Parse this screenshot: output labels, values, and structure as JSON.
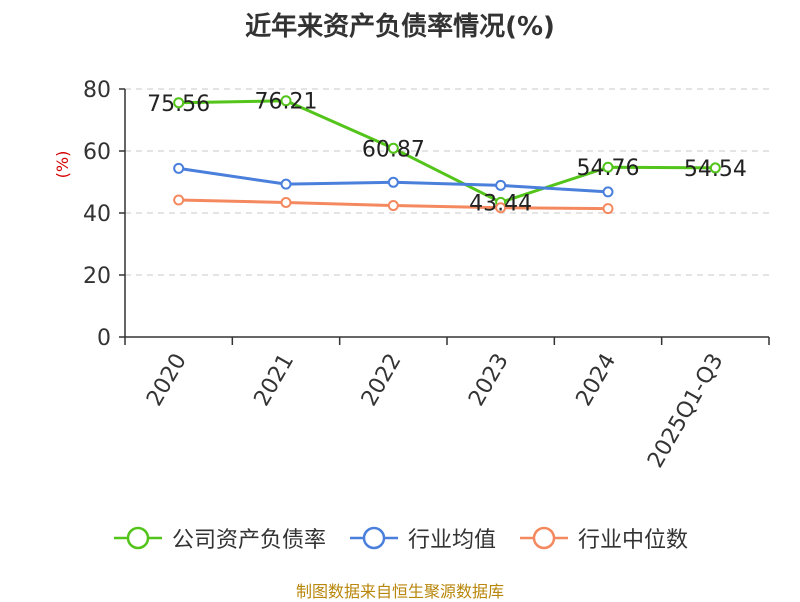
{
  "chart_data": {
    "type": "line",
    "title": "近年来资产负债率情况(%)",
    "ylabel": "(%)",
    "categories": [
      "2020",
      "2021",
      "2022",
      "2023",
      "2024",
      "2025Q1-Q3"
    ],
    "ylim": [
      0,
      80
    ],
    "yticks": [
      0,
      20,
      40,
      60,
      80
    ],
    "grid": true,
    "legend_position": "bottom",
    "series": [
      {
        "name": "公司资产负债率",
        "color": "#52c41a",
        "values": [
          75.56,
          76.21,
          60.87,
          43.44,
          54.76,
          54.54
        ],
        "labels": [
          "75.56",
          "76.21",
          "60.87",
          "43.44",
          "54.76",
          "54.54"
        ]
      },
      {
        "name": "行业均值",
        "color": "#4a7fdc",
        "values": [
          54.4,
          49.3,
          49.9,
          48.9,
          46.8,
          null
        ]
      },
      {
        "name": "行业中位数",
        "color": "#f4895f",
        "values": [
          44.2,
          43.4,
          42.4,
          41.7,
          41.4,
          null
        ]
      }
    ]
  },
  "source_note": "制图数据来自恒生聚源数据库"
}
